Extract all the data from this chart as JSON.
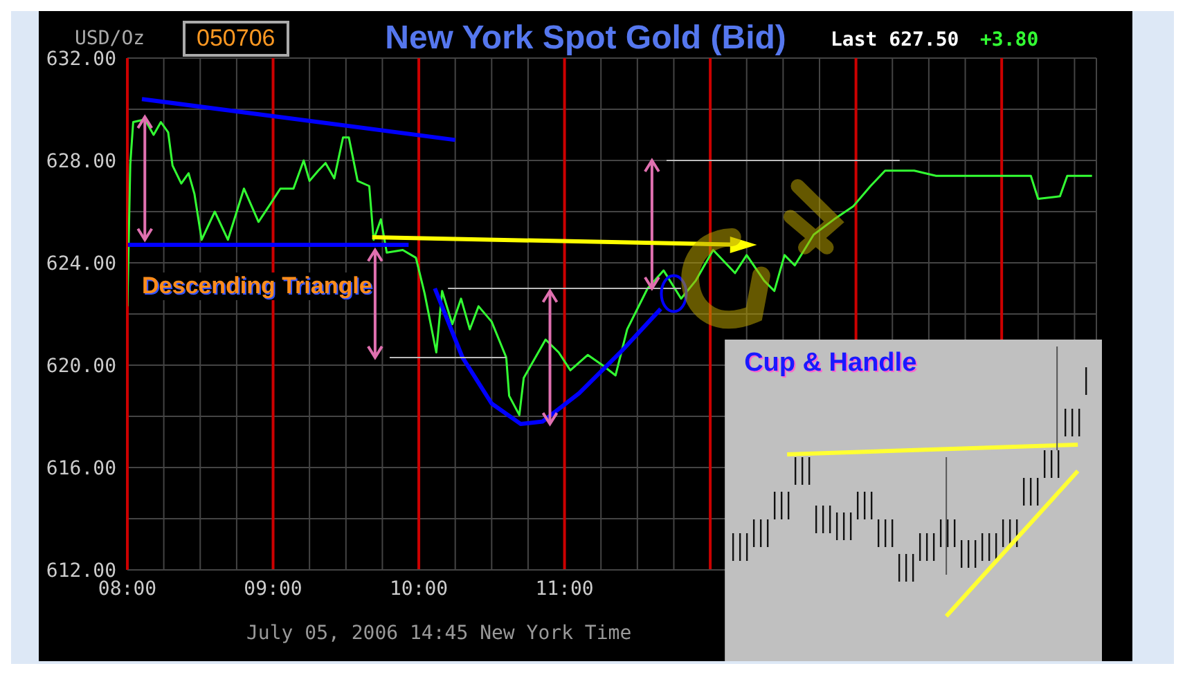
{
  "chart_data": {
    "type": "line",
    "title": "New York Spot Gold (Bid)",
    "ylabel": "USD/Oz",
    "xlabel": "July 05, 2006 14:45 New York Time",
    "annotations": [
      "050706",
      "Last 627.50",
      "+3.80",
      "Descending Triangle",
      "Cup & Handle"
    ],
    "xlim": [
      8,
      14.65
    ],
    "ylim": [
      612,
      632
    ],
    "xticks": [
      {
        "value": 8,
        "label": "08:00"
      },
      {
        "value": 8.25,
        "label": null
      },
      {
        "value": 8.5,
        "label": null
      },
      {
        "value": 8.75,
        "label": null
      },
      {
        "value": 9,
        "label": "09:00"
      },
      {
        "value": 9.25,
        "label": null
      },
      {
        "value": 9.5,
        "label": null
      },
      {
        "value": 9.75,
        "label": null
      },
      {
        "value": 10,
        "label": "10:00"
      },
      {
        "value": 10.25,
        "label": null
      },
      {
        "value": 10.5,
        "label": null
      },
      {
        "value": 10.75,
        "label": null
      },
      {
        "value": 11,
        "label": "11:00"
      },
      {
        "value": 11.25,
        "label": null
      },
      {
        "value": 11.5,
        "label": null
      },
      {
        "value": 11.75,
        "label": null
      },
      {
        "value": 12,
        "label": null
      },
      {
        "value": 12.25,
        "label": null
      },
      {
        "value": 12.5,
        "label": null
      },
      {
        "value": 12.75,
        "label": null
      },
      {
        "value": 13,
        "label": null
      },
      {
        "value": 13.25,
        "label": null
      },
      {
        "value": 13.5,
        "label": null
      },
      {
        "value": 13.75,
        "label": null
      },
      {
        "value": 14,
        "label": null
      },
      {
        "value": 14.25,
        "label": null
      },
      {
        "value": 14.5,
        "label": null
      }
    ],
    "yticks": [
      {
        "value": 612,
        "label": "612.00"
      },
      {
        "value": 614,
        "label": null
      },
      {
        "value": 616,
        "label": "616.00"
      },
      {
        "value": 618,
        "label": null
      },
      {
        "value": 620,
        "label": "620.00"
      },
      {
        "value": 622,
        "label": null
      },
      {
        "value": 624,
        "label": "624.00"
      },
      {
        "value": 626,
        "label": null
      },
      {
        "value": 628,
        "label": "628.00"
      },
      {
        "value": 630,
        "label": null
      },
      {
        "value": 632,
        "label": "632.00"
      }
    ],
    "grid": true,
    "marker": "none",
    "line_style": "solid",
    "series": [
      {
        "color": "#33ff33",
        "x": [
          8.0,
          8.02,
          8.04,
          8.12,
          8.18,
          8.23,
          8.28,
          8.31,
          8.37,
          8.42,
          8.46,
          8.51,
          8.6,
          8.69,
          8.8,
          8.9,
          8.97,
          9.05,
          9.14,
          9.21,
          9.25,
          9.31,
          9.36,
          9.42,
          9.48,
          9.52,
          9.58,
          9.66,
          9.69,
          9.74,
          9.78,
          9.89,
          9.98,
          10.04,
          10.12,
          10.16,
          10.23,
          10.29,
          10.35,
          10.41,
          10.5,
          10.6,
          10.62,
          10.69,
          10.72,
          10.87,
          10.96,
          11.04,
          11.16,
          11.26,
          11.35,
          11.43,
          11.57,
          11.68,
          11.8,
          11.9,
          12.02,
          12.17,
          12.25,
          12.37,
          12.44,
          12.51,
          12.58,
          12.71,
          12.85,
          12.98,
          13.1,
          13.2,
          13.4,
          13.55,
          14.2,
          14.25,
          14.4,
          14.45,
          14.62
        ],
        "values": [
          622.3,
          627.85,
          629.5,
          629.6,
          629.0,
          629.5,
          629.1,
          627.8,
          627.1,
          627.5,
          626.7,
          624.9,
          626.0,
          624.9,
          626.9,
          625.6,
          626.2,
          626.9,
          626.9,
          628.0,
          627.2,
          627.6,
          627.9,
          627.3,
          628.9,
          628.9,
          627.2,
          627.0,
          624.9,
          625.7,
          624.4,
          624.5,
          624.2,
          622.8,
          620.5,
          622.9,
          621.6,
          622.6,
          621.4,
          622.3,
          621.7,
          620.3,
          618.8,
          618.05,
          619.5,
          621.0,
          620.5,
          619.8,
          620.4,
          620.0,
          619.6,
          621.4,
          623.0,
          623.7,
          622.6,
          623.3,
          624.5,
          623.6,
          624.3,
          623.3,
          622.9,
          624.3,
          623.9,
          625.1,
          625.7,
          626.2,
          627.0,
          627.6,
          627.6,
          627.4,
          627.4,
          626.5,
          626.6,
          627.4,
          627.4
        ]
      },
      {
        "color": "#0000ff",
        "x": [
          8.1,
          10.25
        ],
        "values": [
          630.4,
          628.8
        ]
      },
      {
        "color": "#0000ff",
        "x": [
          8.0,
          9.93
        ],
        "values": [
          624.7,
          624.7
        ]
      },
      {
        "color": "#0000ff",
        "x": [
          10.11,
          10.3,
          10.5,
          10.7,
          10.85,
          11.1,
          11.4,
          11.66
        ],
        "values": [
          623.0,
          620.3,
          618.5,
          617.7,
          617.8,
          618.9,
          620.6,
          622.2
        ]
      }
    ]
  }
}
